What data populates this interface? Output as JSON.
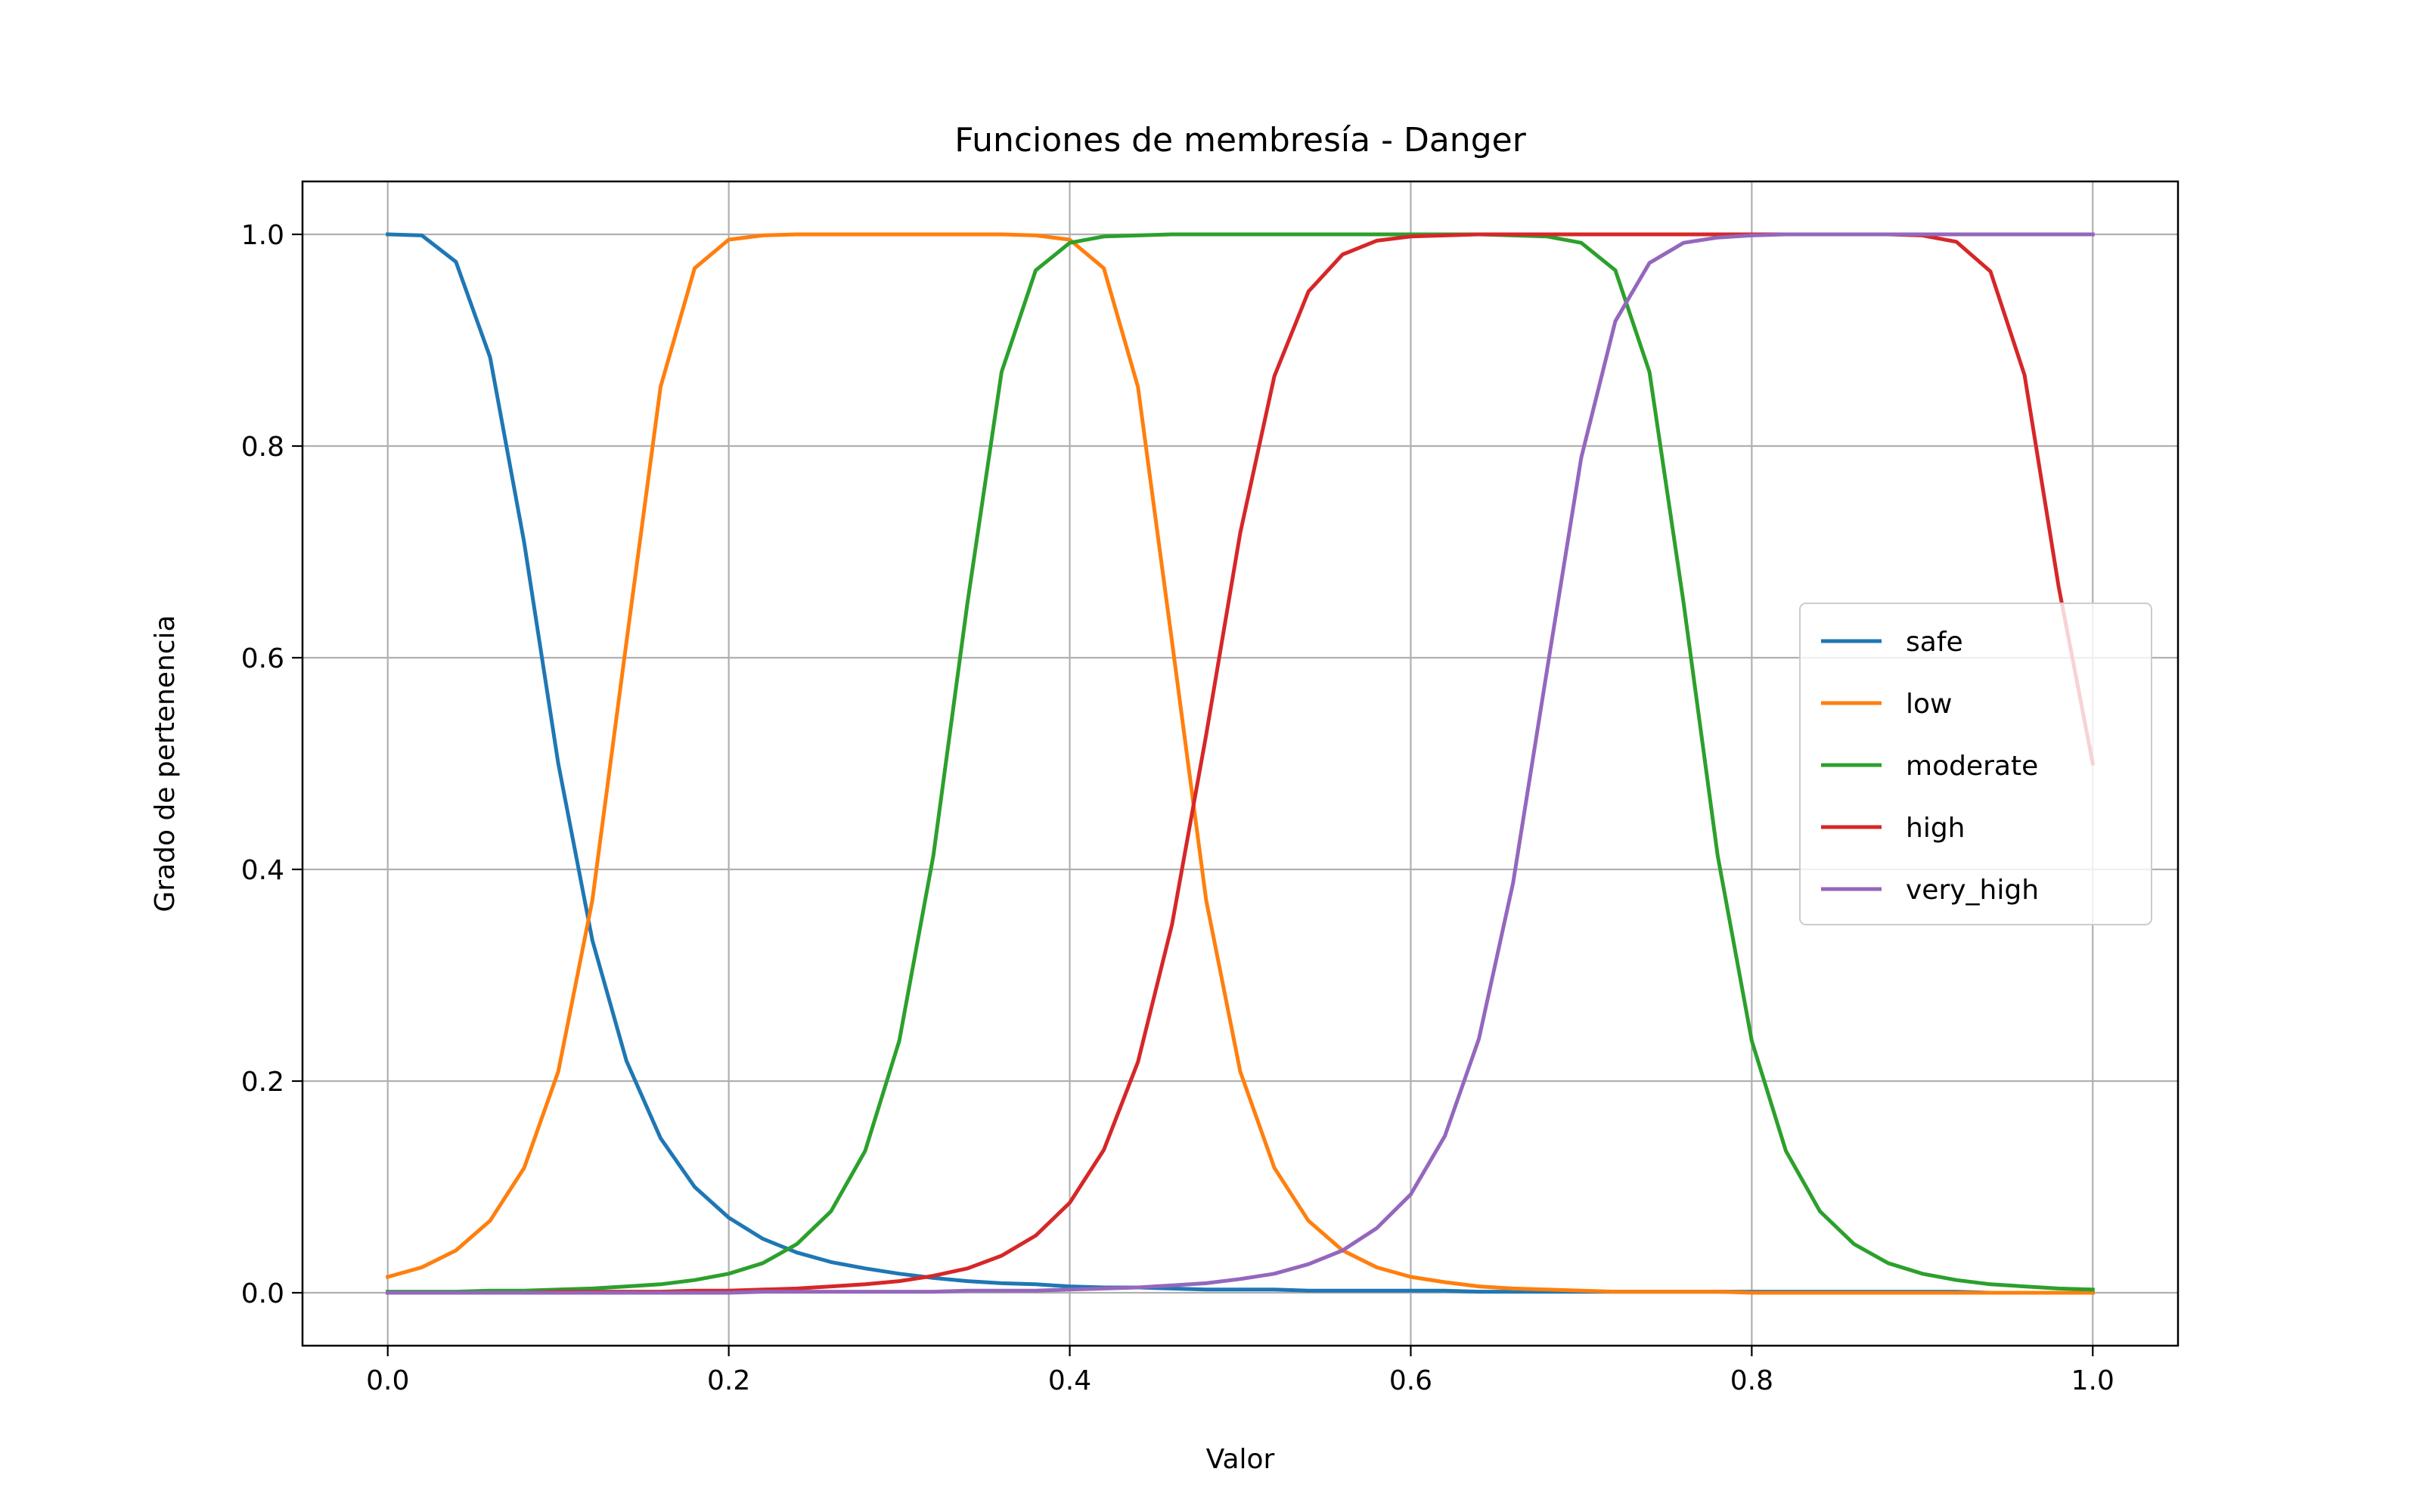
{
  "chart_data": {
    "type": "line",
    "title": "Funciones de membresía - Danger",
    "xlabel": "Valor",
    "ylabel": "Grado de pertenencia",
    "xlim": [
      -0.05,
      1.05
    ],
    "ylim": [
      -0.05,
      1.05
    ],
    "xticks": [
      0.0,
      0.2,
      0.4,
      0.6,
      0.8,
      1.0
    ],
    "yticks": [
      0.0,
      0.2,
      0.4,
      0.6,
      0.8,
      1.0
    ],
    "xtick_labels": [
      "0.0",
      "0.2",
      "0.4",
      "0.6",
      "0.8",
      "1.0"
    ],
    "ytick_labels": [
      "0.0",
      "0.2",
      "0.4",
      "0.6",
      "0.8",
      "1.0"
    ],
    "grid": true,
    "legend_position": "center-right",
    "x": [
      0.0,
      0.02,
      0.04,
      0.06,
      0.08,
      0.1,
      0.12,
      0.14,
      0.16,
      0.18,
      0.2,
      0.22,
      0.24,
      0.26,
      0.28,
      0.3,
      0.32,
      0.34,
      0.36,
      0.38,
      0.4,
      0.42,
      0.44,
      0.46,
      0.48,
      0.5,
      0.52,
      0.54,
      0.56,
      0.58,
      0.6,
      0.62,
      0.64,
      0.66,
      0.68,
      0.7,
      0.72,
      0.74,
      0.76,
      0.78,
      0.8,
      0.82,
      0.84,
      0.86,
      0.88,
      0.9,
      0.92,
      0.94,
      0.96,
      0.98,
      1.0
    ],
    "series": [
      {
        "name": "safe",
        "color": "#1f77b4",
        "values": [
          1.0,
          0.999,
          0.974,
          0.884,
          0.709,
          0.5,
          0.333,
          0.219,
          0.146,
          0.1,
          0.071,
          0.051,
          0.038,
          0.029,
          0.023,
          0.018,
          0.014,
          0.011,
          0.009,
          0.008,
          0.006,
          0.005,
          0.005,
          0.004,
          0.003,
          0.003,
          0.003,
          0.002,
          0.002,
          0.002,
          0.002,
          0.002,
          0.001,
          0.001,
          0.001,
          0.001,
          0.001,
          0.001,
          0.001,
          0.001,
          0.001,
          0.001,
          0.001,
          0.001,
          0.001,
          0.001,
          0.001,
          0.0,
          0.0,
          0.0,
          0.0
        ]
      },
      {
        "name": "low",
        "color": "#ff7f0e",
        "values": [
          0.015,
          0.024,
          0.04,
          0.068,
          0.118,
          0.209,
          0.371,
          0.615,
          0.856,
          0.968,
          0.995,
          0.999,
          1.0,
          1.0,
          1.0,
          1.0,
          1.0,
          1.0,
          1.0,
          0.999,
          0.995,
          0.968,
          0.856,
          0.615,
          0.371,
          0.209,
          0.118,
          0.068,
          0.04,
          0.024,
          0.015,
          0.01,
          0.006,
          0.004,
          0.003,
          0.002,
          0.001,
          0.001,
          0.001,
          0.001,
          0.0,
          0.0,
          0.0,
          0.0,
          0.0,
          0.0,
          0.0,
          0.0,
          0.0,
          0.0,
          0.0
        ]
      },
      {
        "name": "moderate",
        "color": "#2ca02c",
        "values": [
          0.001,
          0.001,
          0.001,
          0.002,
          0.002,
          0.003,
          0.004,
          0.006,
          0.008,
          0.012,
          0.018,
          0.028,
          0.046,
          0.077,
          0.134,
          0.238,
          0.413,
          0.652,
          0.87,
          0.966,
          0.992,
          0.998,
          0.999,
          1.0,
          1.0,
          1.0,
          1.0,
          1.0,
          1.0,
          1.0,
          1.0,
          1.0,
          1.0,
          0.999,
          0.998,
          0.992,
          0.966,
          0.87,
          0.652,
          0.413,
          0.238,
          0.134,
          0.077,
          0.046,
          0.028,
          0.018,
          0.012,
          0.008,
          0.006,
          0.004,
          0.003
        ]
      },
      {
        "name": "high",
        "color": "#d62728",
        "values": [
          0.0,
          0.0,
          0.0,
          0.0,
          0.0,
          0.001,
          0.001,
          0.001,
          0.001,
          0.002,
          0.002,
          0.003,
          0.004,
          0.006,
          0.008,
          0.011,
          0.016,
          0.023,
          0.035,
          0.054,
          0.085,
          0.135,
          0.218,
          0.348,
          0.527,
          0.718,
          0.866,
          0.946,
          0.981,
          0.994,
          0.998,
          0.999,
          1.0,
          1.0,
          1.0,
          1.0,
          1.0,
          1.0,
          1.0,
          1.0,
          1.0,
          1.0,
          1.0,
          1.0,
          1.0,
          0.999,
          0.993,
          0.965,
          0.867,
          0.667,
          0.5
        ]
      },
      {
        "name": "very_high",
        "color": "#9467bd",
        "values": [
          0.0,
          0.0,
          0.0,
          0.0,
          0.0,
          0.0,
          0.0,
          0.0,
          0.0,
          0.0,
          0.0,
          0.001,
          0.001,
          0.001,
          0.001,
          0.001,
          0.001,
          0.002,
          0.002,
          0.002,
          0.003,
          0.004,
          0.005,
          0.007,
          0.009,
          0.013,
          0.018,
          0.027,
          0.04,
          0.061,
          0.093,
          0.148,
          0.24,
          0.387,
          0.589,
          0.789,
          0.918,
          0.973,
          0.992,
          0.997,
          0.999,
          1.0,
          1.0,
          1.0,
          1.0,
          1.0,
          1.0,
          1.0,
          1.0,
          1.0,
          1.0
        ]
      }
    ]
  }
}
